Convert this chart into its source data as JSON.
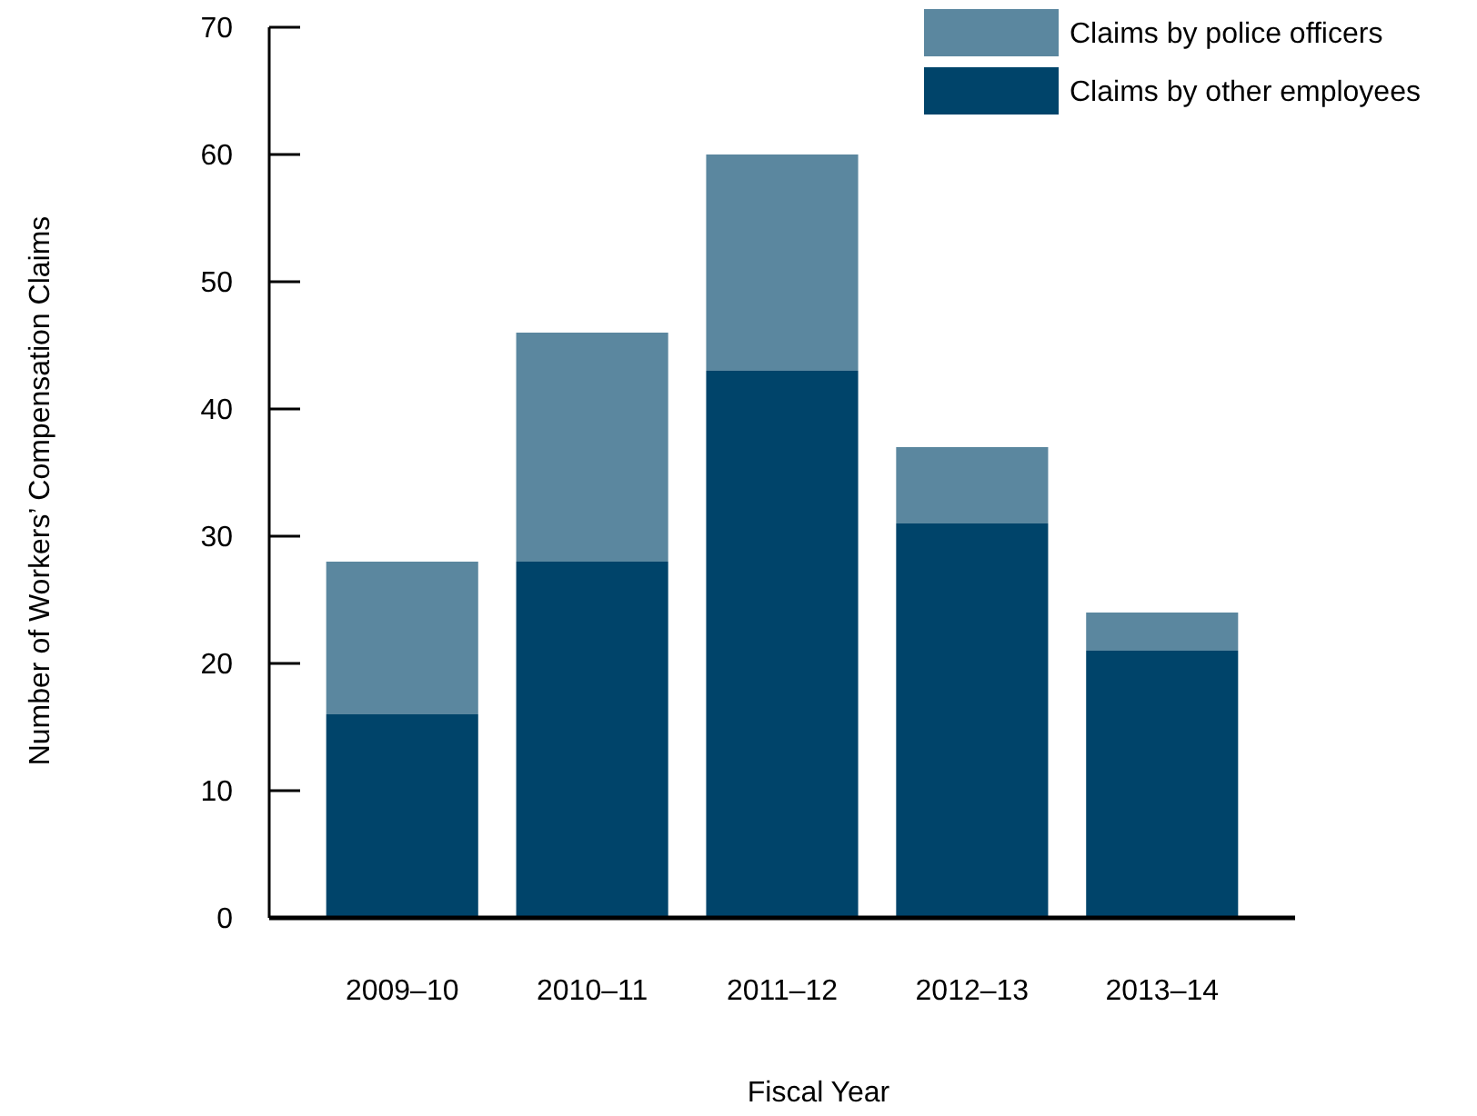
{
  "chart_data": {
    "type": "bar",
    "stacked": true,
    "xlabel": "Fiscal Year",
    "ylabel": "Number of Workers’ Compensation Claims",
    "categories": [
      "2009–10",
      "2010–11",
      "2011–12",
      "2012–13",
      "2013–14"
    ],
    "series": [
      {
        "name": "Claims by other employees",
        "color": "#00446a",
        "values": [
          16,
          28,
          43,
          31,
          21
        ]
      },
      {
        "name": "Claims by police officers",
        "color": "#5b879f",
        "values": [
          12,
          18,
          17,
          6,
          3
        ]
      }
    ],
    "ylim": [
      0,
      70
    ],
    "yticks": [
      0,
      10,
      20,
      30,
      40,
      50,
      60,
      70
    ],
    "grid": false,
    "legend": "top right"
  }
}
